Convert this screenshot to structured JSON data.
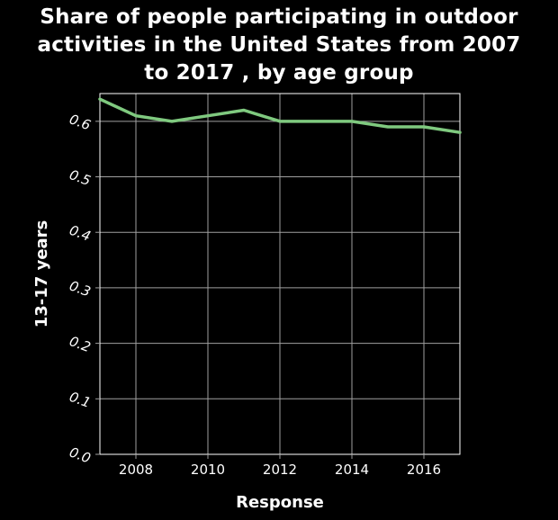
{
  "chart_data": {
    "type": "line",
    "title_lines": [
      "Share of people participating in outdoor",
      "activities in the United States from 2007",
      "to 2017 , by age group"
    ],
    "xlabel": "Response",
    "ylabel": "13-17 years",
    "x": [
      2007,
      2008,
      2009,
      2010,
      2011,
      2012,
      2013,
      2014,
      2015,
      2016,
      2017
    ],
    "series": [
      {
        "values": [
          0.64,
          0.61,
          0.6,
          0.61,
          0.62,
          0.6,
          0.6,
          0.6,
          0.59,
          0.59,
          0.58
        ]
      }
    ],
    "xlim": [
      2007,
      2017
    ],
    "ylim": [
      0.0,
      0.65
    ],
    "x_ticks": [
      2008,
      2010,
      2012,
      2014,
      2016
    ],
    "y_ticks": [
      "0.0",
      "0.1",
      "0.2",
      "0.3",
      "0.4",
      "0.5",
      "0.6"
    ],
    "grid": true,
    "line_color": "#7fc97f",
    "background": "#000000",
    "grid_color": "#a0a0a0"
  }
}
